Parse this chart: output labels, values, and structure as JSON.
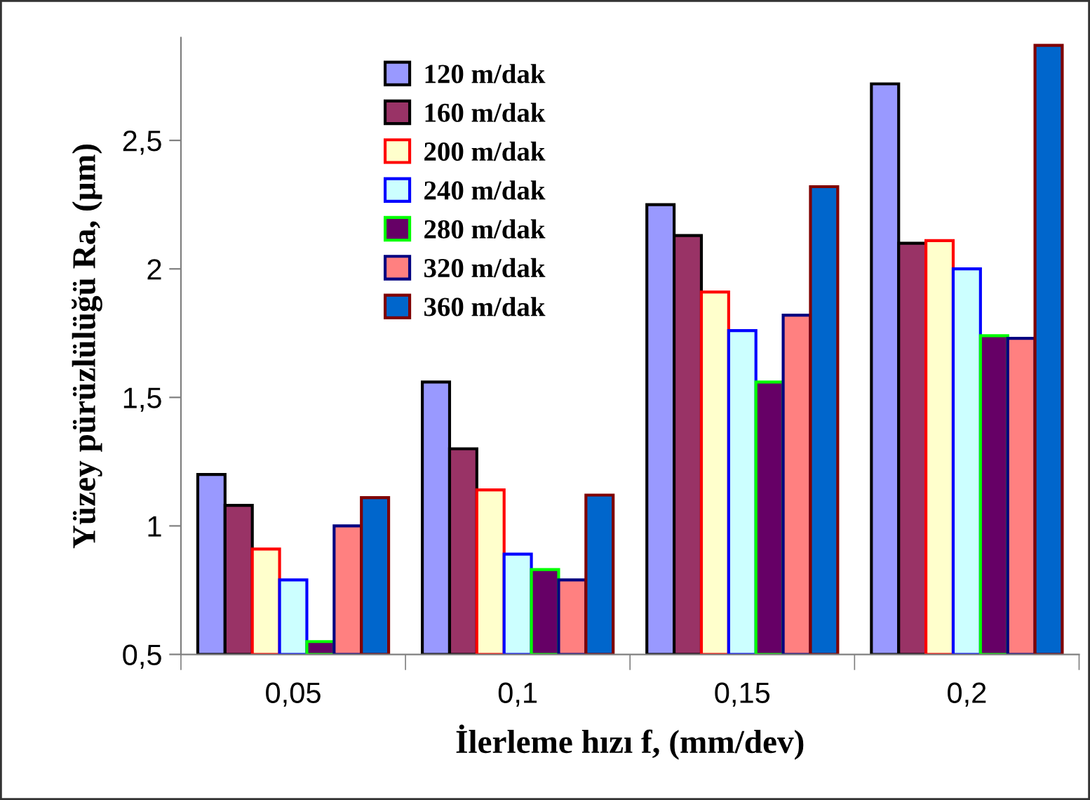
{
  "chart_data": {
    "type": "bar",
    "xlabel": "İlerleme hızı f, (mm/dev)",
    "ylabel": "Yüzey pürüzlülüğü Ra, (µm)",
    "categories": [
      "0,05",
      "0,1",
      "0,15",
      "0,2"
    ],
    "series": [
      {
        "name": "120 m/dak",
        "color": "#9999ff",
        "values": [
          1.2,
          1.56,
          2.25,
          2.72
        ]
      },
      {
        "name": "160 m/dak",
        "color": "#993366",
        "values": [
          1.08,
          1.3,
          2.13,
          2.1
        ]
      },
      {
        "name": "200 m/dak",
        "color": "#ffffcc",
        "values": [
          0.91,
          1.14,
          1.91,
          2.11
        ]
      },
      {
        "name": "240 m/dak",
        "color": "#ccffff",
        "values": [
          0.79,
          0.89,
          1.76,
          2.0
        ]
      },
      {
        "name": "280 m/dak",
        "color": "#660066",
        "values": [
          0.55,
          0.83,
          1.56,
          1.74
        ]
      },
      {
        "name": "320 m/dak",
        "color": "#ff8080",
        "values": [
          1.0,
          0.79,
          1.82,
          1.73
        ]
      },
      {
        "name": "360 m/dak",
        "color": "#0066cc",
        "values": [
          1.11,
          1.12,
          2.32,
          2.87
        ]
      }
    ],
    "ylim": [
      0.5,
      2.9
    ],
    "yticks": [
      {
        "value": 0.5,
        "label": "0,5"
      },
      {
        "value": 1,
        "label": "1"
      },
      {
        "value": 1.5,
        "label": "1,5"
      },
      {
        "value": 2,
        "label": "2"
      },
      {
        "value": 2.5,
        "label": "2,5"
      }
    ],
    "grid": false,
    "legend": "top left"
  }
}
